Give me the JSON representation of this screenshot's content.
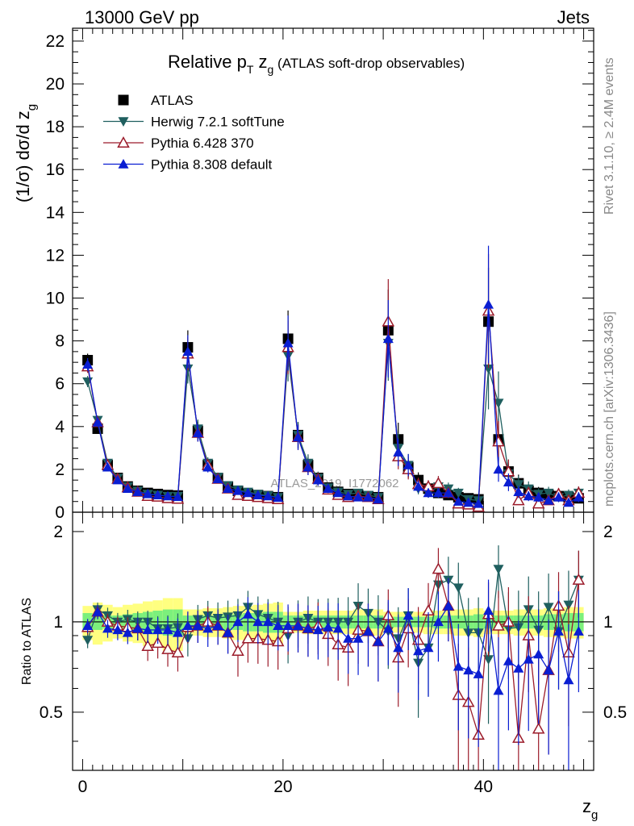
{
  "header": {
    "left": "13000 GeV pp",
    "right": "Jets"
  },
  "title": {
    "main": "Relative p",
    "sub_t": "T",
    "z": " z",
    "sub_g": "g",
    "paren": " (ATLAS soft-drop observables)"
  },
  "side_labels": {
    "rivet": "Rivet 3.1.10, ≥ 2.4M events",
    "mcplots": "mcplots.cern.ch [arXiv:1306.3436]"
  },
  "watermark": "ATLAS_2019_I1772062",
  "chart_data": [
    {
      "type": "line",
      "panel": "main",
      "ylabel": "(1/σ) dσ/d z",
      "ylabel_sub": "g",
      "xlim": [
        -1,
        51
      ],
      "ylim": [
        0,
        22.6
      ],
      "yticks": [
        0,
        2,
        4,
        6,
        8,
        10,
        12,
        14,
        16,
        18,
        20,
        22
      ],
      "x": [
        0.5,
        1.5,
        2.5,
        3.5,
        4.5,
        5.5,
        6.5,
        7.5,
        8.5,
        9.5,
        10.5,
        11.5,
        12.5,
        13.5,
        14.5,
        15.5,
        16.5,
        17.5,
        18.5,
        19.5,
        20.5,
        21.5,
        22.5,
        23.5,
        24.5,
        25.5,
        26.5,
        27.5,
        28.5,
        29.5,
        30.5,
        31.5,
        32.5,
        33.5,
        34.5,
        35.5,
        36.5,
        37.5,
        38.5,
        39.5,
        40.5,
        41.5,
        42.5,
        43.5,
        44.5,
        45.5,
        46.5,
        47.5,
        48.5,
        49.5
      ],
      "series": [
        {
          "name": "ATLAS",
          "color": "#000000",
          "marker": "square",
          "values": [
            7.1,
            3.9,
            2.2,
            1.6,
            1.2,
            1.0,
            0.9,
            0.85,
            0.8,
            0.78,
            7.7,
            3.8,
            2.2,
            1.6,
            1.2,
            1.0,
            0.85,
            0.8,
            0.75,
            0.7,
            8.1,
            3.6,
            2.2,
            1.6,
            1.15,
            0.95,
            0.85,
            0.8,
            0.75,
            0.7,
            8.5,
            3.4,
            2.1,
            1.5,
            1.1,
            0.9,
            0.8,
            0.7,
            0.65,
            0.6,
            8.9,
            3.4,
            1.9,
            1.35,
            1.0,
            0.9,
            0.8,
            0.75,
            0.7,
            0.65
          ]
        },
        {
          "name": "Herwig 7.2.1 softTune",
          "color": "#1f5f5f",
          "marker": "triangle-down",
          "values": [
            6.1,
            4.3,
            2.3,
            1.6,
            1.2,
            1.0,
            0.85,
            0.8,
            0.75,
            0.75,
            6.7,
            3.9,
            2.3,
            1.65,
            1.25,
            1.05,
            0.95,
            0.85,
            0.78,
            0.7,
            7.3,
            3.6,
            2.3,
            1.6,
            1.15,
            0.95,
            0.85,
            0.9,
            0.8,
            0.7,
            7.9,
            3.0,
            2.2,
            1.1,
            0.9,
            1.2,
            1.1,
            0.9,
            0.6,
            0.55,
            6.7,
            5.1,
            1.8,
            1.3,
            1.1,
            0.85,
            0.9,
            0.7,
            0.8,
            0.9
          ]
        },
        {
          "name": "Pythia 6.428 370",
          "color": "#9b1b2a",
          "marker": "triangle-up-open",
          "values": [
            6.8,
            4.2,
            2.2,
            1.55,
            1.15,
            0.95,
            0.75,
            0.72,
            0.65,
            0.62,
            7.4,
            3.7,
            2.2,
            1.55,
            1.1,
            0.8,
            0.75,
            0.7,
            0.65,
            0.6,
            7.7,
            3.5,
            2.1,
            1.55,
            1.05,
            0.8,
            0.7,
            0.75,
            0.7,
            0.6,
            8.9,
            2.6,
            2.0,
            1.3,
            1.2,
            1.35,
            0.9,
            0.4,
            0.35,
            0.25,
            9.4,
            3.3,
            1.9,
            0.55,
            0.9,
            0.4,
            0.55,
            0.85,
            0.55,
            0.9
          ]
        },
        {
          "name": "Pythia 8.308 default",
          "color": "#0a1ed2",
          "marker": "triangle-up",
          "values": [
            6.9,
            4.2,
            2.1,
            1.5,
            1.1,
            0.95,
            0.85,
            0.8,
            0.75,
            0.72,
            7.5,
            3.7,
            2.1,
            1.55,
            1.1,
            1.0,
            0.9,
            0.8,
            0.75,
            0.68,
            7.9,
            3.5,
            2.1,
            1.5,
            1.1,
            0.9,
            0.75,
            0.7,
            0.7,
            0.6,
            8.1,
            2.8,
            2.2,
            1.2,
            0.9,
            0.9,
            0.9,
            0.5,
            0.45,
            0.4,
            9.7,
            2.0,
            1.4,
            0.95,
            0.75,
            0.7,
            0.55,
            0.7,
            0.45,
            0.7
          ]
        }
      ]
    },
    {
      "type": "line",
      "panel": "ratio",
      "ylabel": "Ratio to ATLAS",
      "xlabel": "z",
      "xlabel_sub": "g",
      "xlim": [
        -1,
        51
      ],
      "xticks": [
        0,
        20,
        40
      ],
      "ylim": [
        0.32,
        2.32
      ],
      "yticks": [
        0.5,
        1,
        2
      ],
      "x": [
        0.5,
        1.5,
        2.5,
        3.5,
        4.5,
        5.5,
        6.5,
        7.5,
        8.5,
        9.5,
        10.5,
        11.5,
        12.5,
        13.5,
        14.5,
        15.5,
        16.5,
        17.5,
        18.5,
        19.5,
        20.5,
        21.5,
        22.5,
        23.5,
        24.5,
        25.5,
        26.5,
        27.5,
        28.5,
        29.5,
        30.5,
        31.5,
        32.5,
        33.5,
        34.5,
        35.5,
        36.5,
        37.5,
        38.5,
        39.5,
        40.5,
        41.5,
        42.5,
        43.5,
        44.5,
        45.5,
        46.5,
        47.5,
        48.5,
        49.5
      ],
      "band_inner": [
        0.07,
        0.06,
        0.05,
        0.05,
        0.06,
        0.07,
        0.08,
        0.09,
        0.1,
        0.1,
        0.05,
        0.05,
        0.05,
        0.05,
        0.06,
        0.06,
        0.07,
        0.07,
        0.08,
        0.08,
        0.05,
        0.05,
        0.05,
        0.05,
        0.05,
        0.05,
        0.05,
        0.05,
        0.05,
        0.05,
        0.04,
        0.04,
        0.04,
        0.04,
        0.04,
        0.05,
        0.05,
        0.05,
        0.05,
        0.06,
        0.05,
        0.05,
        0.05,
        0.05,
        0.05,
        0.05,
        0.06,
        0.06,
        0.07,
        0.07
      ],
      "band_outer": [
        0.13,
        0.16,
        0.14,
        0.12,
        0.14,
        0.15,
        0.17,
        0.18,
        0.2,
        0.2,
        0.1,
        0.1,
        0.11,
        0.11,
        0.12,
        0.13,
        0.13,
        0.14,
        0.15,
        0.16,
        0.08,
        0.08,
        0.09,
        0.09,
        0.09,
        0.09,
        0.09,
        0.1,
        0.1,
        0.1,
        0.08,
        0.08,
        0.08,
        0.08,
        0.09,
        0.09,
        0.09,
        0.1,
        0.1,
        0.11,
        0.09,
        0.09,
        0.09,
        0.1,
        0.1,
        0.1,
        0.11,
        0.11,
        0.12,
        0.12
      ],
      "series": [
        {
          "name": "Herwig 7.2.1 softTune",
          "color": "#1f5f5f",
          "marker": "triangle-down",
          "values": [
            0.87,
            1.1,
            1.05,
            1.0,
            1.02,
            1.0,
            1.0,
            0.95,
            0.95,
            0.96,
            0.88,
            1.02,
            1.05,
            1.03,
            1.04,
            1.05,
            1.12,
            1.06,
            1.03,
            1.0,
            0.9,
            1.0,
            1.03,
            1.0,
            1.0,
            1.0,
            1.0,
            1.13,
            1.07,
            1.0,
            0.93,
            0.88,
            1.05,
            0.73,
            0.82,
            1.33,
            1.38,
            1.3,
            0.92,
            0.92,
            0.75,
            1.5,
            0.95,
            0.96,
            1.1,
            0.94,
            1.12,
            0.93,
            1.14,
            1.38
          ]
        },
        {
          "name": "Pythia 6.428 370",
          "color": "#9b1b2a",
          "marker": "triangle-up-open",
          "values": [
            0.96,
            1.08,
            1.0,
            0.97,
            0.96,
            0.95,
            0.83,
            0.85,
            0.81,
            0.79,
            0.96,
            0.97,
            1.0,
            0.97,
            0.92,
            0.8,
            0.88,
            0.88,
            0.87,
            0.86,
            0.95,
            0.97,
            0.95,
            0.97,
            0.91,
            0.84,
            0.82,
            0.94,
            0.93,
            0.86,
            1.05,
            0.76,
            0.95,
            0.87,
            1.09,
            1.5,
            1.13,
            0.57,
            0.54,
            0.42,
            1.06,
            0.97,
            1.0,
            0.41,
            0.9,
            0.44,
            0.69,
            1.13,
            0.79,
            1.38
          ]
        },
        {
          "name": "Pythia 8.308 default",
          "color": "#0a1ed2",
          "marker": "triangle-up",
          "values": [
            0.97,
            1.08,
            0.95,
            0.94,
            0.92,
            0.95,
            0.94,
            0.94,
            0.94,
            0.92,
            0.97,
            0.97,
            0.95,
            0.97,
            0.92,
            1.0,
            1.06,
            1.0,
            1.0,
            0.97,
            0.97,
            0.97,
            0.95,
            0.94,
            0.96,
            0.95,
            0.88,
            0.88,
            0.93,
            0.86,
            0.95,
            0.82,
            1.05,
            0.8,
            0.82,
            1.0,
            1.13,
            0.71,
            0.69,
            0.67,
            1.09,
            0.59,
            0.74,
            0.7,
            0.75,
            0.78,
            0.69,
            0.93,
            0.64,
            0.93
          ]
        }
      ]
    }
  ]
}
